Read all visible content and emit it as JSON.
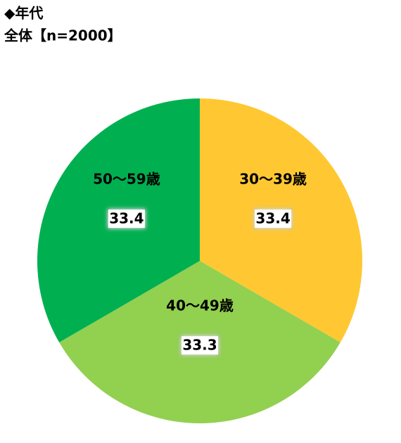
{
  "chart_data": {
    "type": "pie",
    "title": "◆年代",
    "subtitle": "全体【n=2000】",
    "categories": [
      "30～39歳",
      "40～49歳",
      "50～59歳"
    ],
    "values": [
      33.4,
      33.3,
      33.4
    ],
    "colors": [
      "#ffc832",
      "#92d050",
      "#00b050"
    ]
  }
}
